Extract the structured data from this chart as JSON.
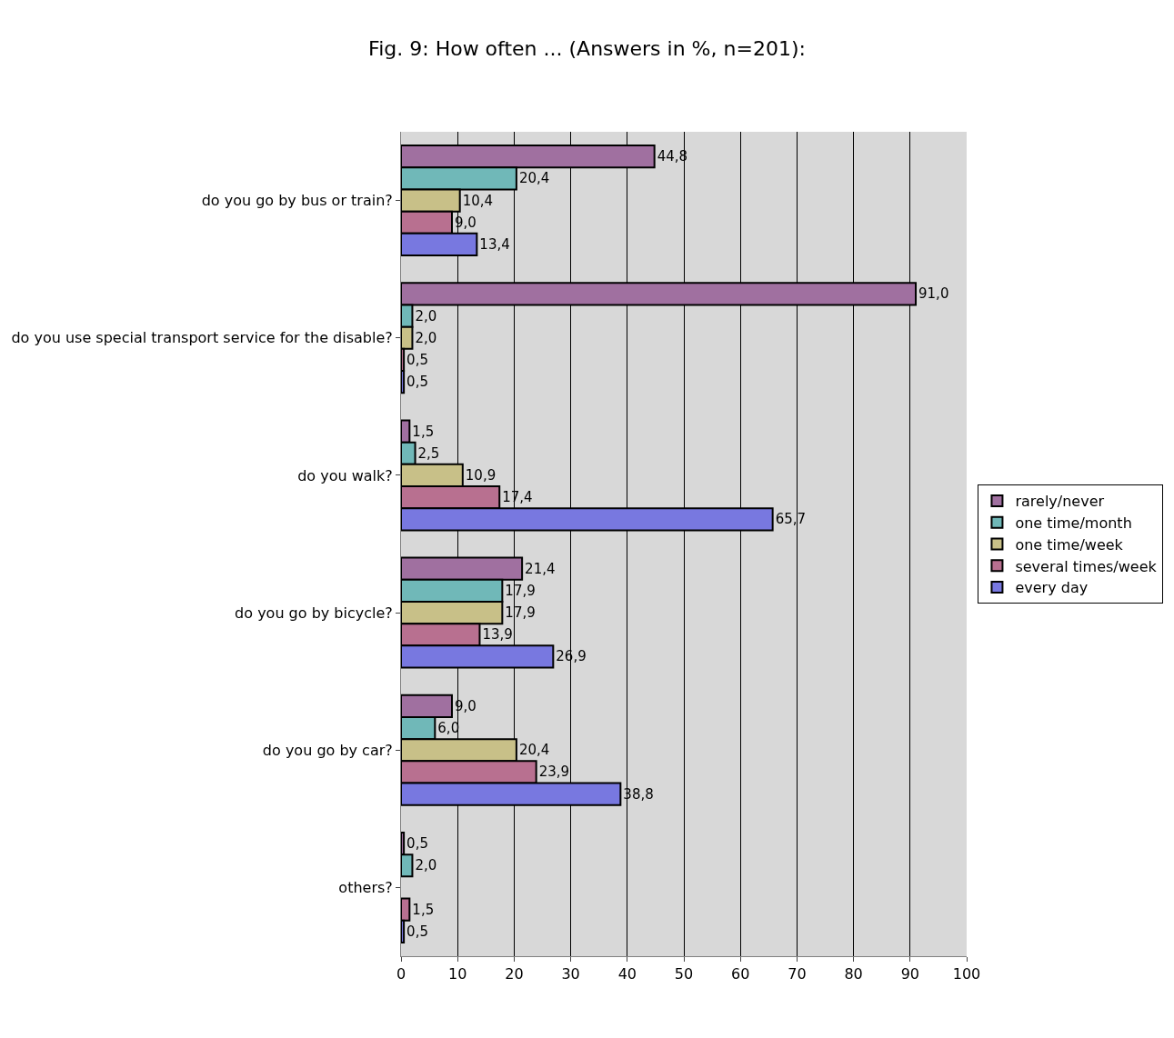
{
  "chart_data": {
    "type": "bar",
    "orientation": "horizontal",
    "title": "Fig. 9: How often ... (Answers in %, n=201):",
    "categories": [
      "do you go by bus or train?",
      "do you use special transport service for the disable?",
      "do you walk?",
      "do you go by bicycle?",
      "do you go by car?",
      "others?"
    ],
    "series": [
      {
        "name": "rarely/never",
        "color": "#a070a0",
        "values": [
          44.8,
          91.0,
          1.5,
          21.4,
          9.0,
          0.5
        ],
        "value_labels": [
          "44,8",
          "91,0",
          "1,5",
          "21,4",
          "9,0",
          "0,5"
        ]
      },
      {
        "name": "one time/month",
        "color": "#70b8b8",
        "values": [
          20.4,
          2.0,
          2.5,
          17.9,
          6.0,
          2.0
        ],
        "value_labels": [
          "20,4",
          "2,0",
          "2,5",
          "17,9",
          "6,0",
          "2,0"
        ]
      },
      {
        "name": "one time/week",
        "color": "#c8c088",
        "values": [
          10.4,
          2.0,
          10.9,
          17.9,
          20.4,
          null
        ],
        "value_labels": [
          "10,4",
          "2,0",
          "10,9",
          "17,9",
          "20,4",
          null
        ]
      },
      {
        "name": "several times/week",
        "color": "#b87090",
        "values": [
          9.0,
          0.5,
          17.4,
          13.9,
          23.9,
          1.5
        ],
        "value_labels": [
          "9,0",
          "0,5",
          "17,4",
          "13,9",
          "23,9",
          "1,5"
        ]
      },
      {
        "name": "every day",
        "color": "#7878e0",
        "values": [
          13.4,
          0.5,
          65.7,
          26.9,
          38.8,
          0.5
        ],
        "value_labels": [
          "13,4",
          "0,5",
          "65,7",
          "26,9",
          "38,8",
          "0,5"
        ]
      }
    ],
    "xlim": [
      0,
      100
    ],
    "xticks": [
      0,
      10,
      20,
      30,
      40,
      50,
      60,
      70,
      80,
      90,
      100
    ],
    "grid": "x",
    "legend": "right"
  }
}
